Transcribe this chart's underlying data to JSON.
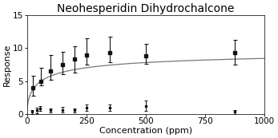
{
  "title": "Neohesperidin Dihydrochalcone",
  "xlabel": "Concentration (ppm)",
  "ylabel": "Response",
  "xlim": [
    0,
    1000
  ],
  "ylim": [
    0,
    15
  ],
  "xticks": [
    0,
    250,
    500,
    750,
    1000
  ],
  "yticks": [
    0,
    5,
    10,
    15
  ],
  "upper_points": {
    "x": [
      25,
      60,
      100,
      150,
      200,
      250,
      350,
      500,
      875
    ],
    "y": [
      4.0,
      5.0,
      6.5,
      7.5,
      8.3,
      9.0,
      9.3,
      8.8,
      9.3
    ],
    "yerr_lo": [
      1.2,
      0.7,
      1.3,
      1.5,
      2.0,
      1.5,
      1.5,
      1.2,
      1.8
    ],
    "yerr_hi": [
      1.8,
      2.0,
      2.5,
      2.0,
      2.0,
      2.5,
      2.5,
      1.8,
      2.0
    ]
  },
  "lower_points": {
    "x": [
      20,
      40,
      55,
      100,
      150,
      200,
      250,
      350,
      500,
      875
    ],
    "y": [
      0.3,
      0.5,
      0.8,
      0.5,
      0.6,
      0.5,
      0.9,
      0.9,
      1.2,
      0.3
    ],
    "yerr_lo": [
      0.3,
      0.4,
      0.4,
      0.3,
      0.4,
      0.3,
      0.5,
      0.5,
      0.8,
      0.3
    ],
    "yerr_hi": [
      0.3,
      0.4,
      0.4,
      0.3,
      0.4,
      0.3,
      0.5,
      0.5,
      0.8,
      0.3
    ]
  },
  "curve_Rmax": 10.0,
  "curve_K": 60,
  "curve_n": 0.6,
  "marker_color": "#111111",
  "curve_color": "#777777",
  "background_color": "#ffffff",
  "title_fontsize": 10,
  "axis_fontsize": 8,
  "tick_fontsize": 7.5
}
